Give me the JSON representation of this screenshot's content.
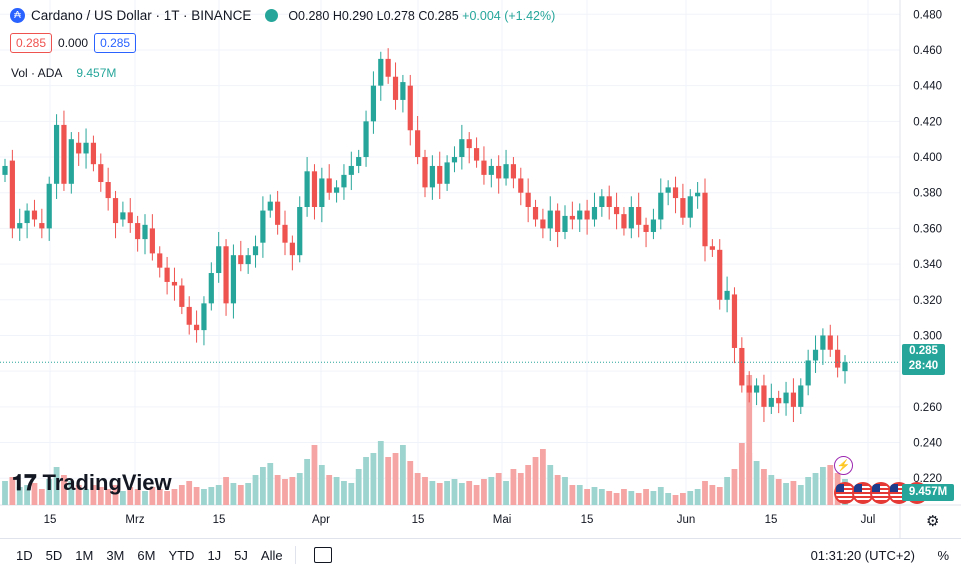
{
  "header": {
    "symbol_title": "Cardano / US Dollar · 1T · BINANCE",
    "open": "O0.280",
    "high": "H0.290",
    "low": "L0.278",
    "close": "C0.285",
    "change": "+0.004 (+1.42%)",
    "bid": "0.285",
    "spread": "0.000",
    "ask": "0.285",
    "volume_label": "Vol · ADA",
    "volume_value": "9.457M"
  },
  "price_badge": {
    "price": "0.285",
    "countdown": "28:40"
  },
  "volume_badge": "9.457M",
  "logo_text": "TradingView",
  "bottom_bar": {
    "timeframes": [
      "1D",
      "5D",
      "1M",
      "3M",
      "6M",
      "YTD",
      "1J",
      "5J",
      "Alle"
    ],
    "time": "01:31:20 (UTC+2)",
    "percent": "%"
  },
  "colors": {
    "up": "#26a69a",
    "down": "#ef5350",
    "volume_up": "#9ed4cf",
    "volume_down": "#f5a6a4",
    "accent": "#2962ff"
  },
  "chart_data": {
    "type": "candlestick",
    "y_ticks": [
      "0.480",
      "0.460",
      "0.440",
      "0.420",
      "0.400",
      "0.380",
      "0.360",
      "0.340",
      "0.320",
      "0.300",
      "0.280",
      "0.260",
      "0.240",
      "0.220"
    ],
    "x_ticks": [
      "15",
      "Mrz",
      "15",
      "Apr",
      "15",
      "Mai",
      "15",
      "Jun",
      "15",
      "Jul"
    ],
    "ylim": [
      0.205,
      0.488
    ],
    "last_price": 0.285,
    "candles": [
      {
        "o": 0.39,
        "c": 0.395
      },
      {
        "o": 0.398,
        "c": 0.36
      },
      {
        "o": 0.36,
        "c": 0.363
      },
      {
        "o": 0.363,
        "c": 0.37
      },
      {
        "o": 0.37,
        "c": 0.365
      },
      {
        "o": 0.363,
        "c": 0.36
      },
      {
        "o": 0.36,
        "c": 0.385
      },
      {
        "o": 0.385,
        "c": 0.418
      },
      {
        "o": 0.418,
        "c": 0.385
      },
      {
        "o": 0.385,
        "c": 0.41
      },
      {
        "o": 0.408,
        "c": 0.402
      },
      {
        "o": 0.402,
        "c": 0.408
      },
      {
        "o": 0.408,
        "c": 0.396
      },
      {
        "o": 0.396,
        "c": 0.386
      },
      {
        "o": 0.386,
        "c": 0.377
      },
      {
        "o": 0.377,
        "c": 0.363
      },
      {
        "o": 0.365,
        "c": 0.369
      },
      {
        "o": 0.369,
        "c": 0.363
      },
      {
        "o": 0.363,
        "c": 0.354
      },
      {
        "o": 0.354,
        "c": 0.362
      },
      {
        "o": 0.36,
        "c": 0.346
      },
      {
        "o": 0.346,
        "c": 0.338
      },
      {
        "o": 0.338,
        "c": 0.33
      },
      {
        "o": 0.33,
        "c": 0.328
      },
      {
        "o": 0.328,
        "c": 0.316
      },
      {
        "o": 0.316,
        "c": 0.306
      },
      {
        "o": 0.306,
        "c": 0.303
      },
      {
        "o": 0.303,
        "c": 0.318
      },
      {
        "o": 0.318,
        "c": 0.335
      },
      {
        "o": 0.335,
        "c": 0.35
      },
      {
        "o": 0.35,
        "c": 0.318
      },
      {
        "o": 0.318,
        "c": 0.345
      },
      {
        "o": 0.345,
        "c": 0.34
      },
      {
        "o": 0.34,
        "c": 0.345
      },
      {
        "o": 0.345,
        "c": 0.35
      },
      {
        "o": 0.352,
        "c": 0.37
      },
      {
        "o": 0.37,
        "c": 0.375
      },
      {
        "o": 0.375,
        "c": 0.362
      },
      {
        "o": 0.362,
        "c": 0.352
      },
      {
        "o": 0.352,
        "c": 0.345
      },
      {
        "o": 0.345,
        "c": 0.372
      },
      {
        "o": 0.372,
        "c": 0.392
      },
      {
        "o": 0.392,
        "c": 0.372
      },
      {
        "o": 0.372,
        "c": 0.388
      },
      {
        "o": 0.388,
        "c": 0.38
      },
      {
        "o": 0.38,
        "c": 0.383
      },
      {
        "o": 0.383,
        "c": 0.39
      },
      {
        "o": 0.39,
        "c": 0.395
      },
      {
        "o": 0.395,
        "c": 0.4
      },
      {
        "o": 0.4,
        "c": 0.42
      },
      {
        "o": 0.42,
        "c": 0.44
      },
      {
        "o": 0.44,
        "c": 0.455
      },
      {
        "o": 0.455,
        "c": 0.445
      },
      {
        "o": 0.445,
        "c": 0.432
      },
      {
        "o": 0.432,
        "c": 0.442
      },
      {
        "o": 0.44,
        "c": 0.415
      },
      {
        "o": 0.415,
        "c": 0.4
      },
      {
        "o": 0.4,
        "c": 0.383
      },
      {
        "o": 0.383,
        "c": 0.395
      },
      {
        "o": 0.395,
        "c": 0.385
      },
      {
        "o": 0.385,
        "c": 0.397
      },
      {
        "o": 0.397,
        "c": 0.4
      },
      {
        "o": 0.4,
        "c": 0.41
      },
      {
        "o": 0.41,
        "c": 0.405
      },
      {
        "o": 0.405,
        "c": 0.398
      },
      {
        "o": 0.398,
        "c": 0.39
      },
      {
        "o": 0.39,
        "c": 0.395
      },
      {
        "o": 0.395,
        "c": 0.388
      },
      {
        "o": 0.388,
        "c": 0.396
      },
      {
        "o": 0.396,
        "c": 0.388
      },
      {
        "o": 0.388,
        "c": 0.38
      },
      {
        "o": 0.38,
        "c": 0.372
      },
      {
        "o": 0.372,
        "c": 0.365
      },
      {
        "o": 0.365,
        "c": 0.36
      },
      {
        "o": 0.36,
        "c": 0.37
      },
      {
        "o": 0.37,
        "c": 0.358
      },
      {
        "o": 0.358,
        "c": 0.367
      },
      {
        "o": 0.367,
        "c": 0.365
      },
      {
        "o": 0.365,
        "c": 0.37
      },
      {
        "o": 0.37,
        "c": 0.365
      },
      {
        "o": 0.365,
        "c": 0.372
      },
      {
        "o": 0.372,
        "c": 0.378
      },
      {
        "o": 0.378,
        "c": 0.372
      },
      {
        "o": 0.372,
        "c": 0.368
      },
      {
        "o": 0.368,
        "c": 0.36
      },
      {
        "o": 0.36,
        "c": 0.372
      },
      {
        "o": 0.372,
        "c": 0.362
      },
      {
        "o": 0.362,
        "c": 0.358
      },
      {
        "o": 0.358,
        "c": 0.365
      },
      {
        "o": 0.365,
        "c": 0.38
      },
      {
        "o": 0.38,
        "c": 0.383
      },
      {
        "o": 0.383,
        "c": 0.377
      },
      {
        "o": 0.377,
        "c": 0.366
      },
      {
        "o": 0.366,
        "c": 0.378
      },
      {
        "o": 0.378,
        "c": 0.38
      },
      {
        "o": 0.38,
        "c": 0.35
      },
      {
        "o": 0.35,
        "c": 0.348
      },
      {
        "o": 0.348,
        "c": 0.32
      },
      {
        "o": 0.32,
        "c": 0.325
      },
      {
        "o": 0.323,
        "c": 0.293
      },
      {
        "o": 0.293,
        "c": 0.272
      },
      {
        "o": 0.272,
        "c": 0.268
      },
      {
        "o": 0.268,
        "c": 0.272
      },
      {
        "o": 0.272,
        "c": 0.26
      },
      {
        "o": 0.26,
        "c": 0.265
      },
      {
        "o": 0.265,
        "c": 0.262
      },
      {
        "o": 0.262,
        "c": 0.268
      },
      {
        "o": 0.268,
        "c": 0.26
      },
      {
        "o": 0.26,
        "c": 0.272
      },
      {
        "o": 0.272,
        "c": 0.286
      },
      {
        "o": 0.286,
        "c": 0.292
      },
      {
        "o": 0.292,
        "c": 0.3
      },
      {
        "o": 0.3,
        "c": 0.292
      },
      {
        "o": 0.292,
        "c": 0.282
      },
      {
        "o": 0.28,
        "c": 0.285
      }
    ],
    "volume_range": [
      0,
      3.5
    ]
  }
}
